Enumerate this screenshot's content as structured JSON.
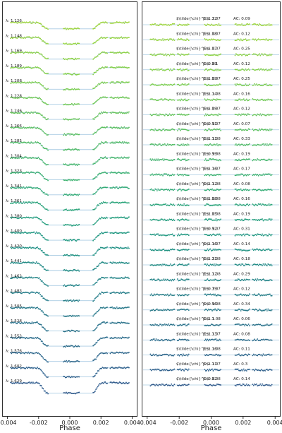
{
  "chart_data": [
    {
      "type": "line",
      "panel": "light-curves",
      "xlabel": "Phase",
      "xticks": [
        "-0.004",
        "-0.002",
        "0.000",
        "0.002",
        "0.004"
      ],
      "xlim": [
        -0.0043,
        0.0043
      ],
      "transit": {
        "t1": -0.00205,
        "t2": -0.0014,
        "t3": 0.00143,
        "t4": 0.00208
      },
      "series": [
        {
          "label": "λ: 1.126",
          "color": "#9fd63a",
          "depth": 0.55
        },
        {
          "label": "λ: 1.148",
          "color": "#97d63e",
          "depth": 0.56
        },
        {
          "label": "λ: 1.169",
          "color": "#8fd443",
          "depth": 0.57
        },
        {
          "label": "λ: 1.189",
          "color": "#86d249",
          "depth": 0.57
        },
        {
          "label": "λ: 1.208",
          "color": "#7dcf4d",
          "depth": 0.58
        },
        {
          "label": "λ: 1.228",
          "color": "#72cb52",
          "depth": 0.59
        },
        {
          "label": "λ: 1.246",
          "color": "#67c657",
          "depth": 0.6
        },
        {
          "label": "λ: 1.266",
          "color": "#5bc15d",
          "depth": 0.6
        },
        {
          "label": "λ: 1.285",
          "color": "#50bc63",
          "depth": 0.61
        },
        {
          "label": "λ: 1.304",
          "color": "#45b769",
          "depth": 0.62
        },
        {
          "label": "λ: 1.323",
          "color": "#3bb26e",
          "depth": 0.63
        },
        {
          "label": "λ: 1.341",
          "color": "#32ac73",
          "depth": 0.63
        },
        {
          "label": "λ: 1.361",
          "color": "#2aa577",
          "depth": 0.64
        },
        {
          "label": "λ: 1.380",
          "color": "#249f7b",
          "depth": 0.65
        },
        {
          "label": "λ: 1.400",
          "color": "#20997e",
          "depth": 0.66
        },
        {
          "label": "λ: 1.420",
          "color": "#1f9280",
          "depth": 0.67
        },
        {
          "label": "λ: 1.441",
          "color": "#208b82",
          "depth": 0.68
        },
        {
          "label": "λ: 1.462",
          "color": "#228484",
          "depth": 0.69
        },
        {
          "label": "λ: 1.483",
          "color": "#247d85",
          "depth": 0.7
        },
        {
          "label": "λ: 1.505",
          "color": "#267786",
          "depth": 0.71
        },
        {
          "label": "λ: 1.528",
          "color": "#287087",
          "depth": 0.72
        },
        {
          "label": "λ: 1.552",
          "color": "#2a6a88",
          "depth": 0.74
        },
        {
          "label": "λ: 1.576",
          "color": "#2c6488",
          "depth": 0.76
        },
        {
          "label": "λ: 1.602",
          "color": "#2d5e89",
          "depth": 0.8
        },
        {
          "label": "λ: 1.629",
          "color": "#2f5889",
          "depth": 0.9
        }
      ]
    },
    {
      "type": "scatter",
      "panel": "residuals",
      "xlabel": "Phase",
      "xticks": [
        "-0.004",
        "-0.002",
        "0.000",
        "0.002",
        "0.004"
      ],
      "xlim": [
        -0.0043,
        0.0043
      ],
      "series": [
        {
          "chi2": "$\\tilde{\\chi}^2$: 1.07",
          "beta": "β: 1.22",
          "ac": "AC: 0.09"
        },
        {
          "chi2": "$\\tilde{\\chi}^2$: 1.07",
          "beta": "β: 1.08",
          "ac": "AC: 0.12"
        },
        {
          "chi2": "$\\tilde{\\chi}^2$: 1.07",
          "beta": "β: 1.07",
          "ac": "AC: 0.25"
        },
        {
          "chi2": "$\\tilde{\\chi}^2$: 1.1",
          "beta": "β: 0.89",
          "ac": "AC: 0.12"
        },
        {
          "chi2": "$\\tilde{\\chi}^2$: 1.07",
          "beta": "β: 1.09",
          "ac": "AC: 0.25"
        },
        {
          "chi2": "$\\tilde{\\chi}^2$: 1.08",
          "beta": "β: 1.14",
          "ac": "AC: 0.16"
        },
        {
          "chi2": "$\\tilde{\\chi}^2$: 1.07",
          "beta": "β: 1.09",
          "ac": "AC: 0.12"
        },
        {
          "chi2": "$\\tilde{\\chi}^2$: 1.07",
          "beta": "β: 0.91",
          "ac": "AC: 0.07"
        },
        {
          "chi2": "$\\tilde{\\chi}^2$: 1.08",
          "beta": "β: 1.11",
          "ac": "AC: 0.33"
        },
        {
          "chi2": "$\\tilde{\\chi}^2$: 1.08",
          "beta": "β: 0.99",
          "ac": "AC: 0.19"
        },
        {
          "chi2": "$\\tilde{\\chi}^2$: 1.07",
          "beta": "β: 1.16",
          "ac": "AC: 0.17"
        },
        {
          "chi2": "$\\tilde{\\chi}^2$: 1.08",
          "beta": "β: 1.12",
          "ac": "AC: 0.08"
        },
        {
          "chi2": "$\\tilde{\\chi}^2$: 1.08",
          "beta": "β: 1.08",
          "ac": "AC: 0.16"
        },
        {
          "chi2": "$\\tilde{\\chi}^2$: 1.08",
          "beta": "β: 1.05",
          "ac": "AC: 0.19"
        },
        {
          "chi2": "$\\tilde{\\chi}^2$: 1.07",
          "beta": "β: 0.92",
          "ac": "AC: 0.31"
        },
        {
          "chi2": "$\\tilde{\\chi}^2$: 1.07",
          "beta": "β: 1.16",
          "ac": "AC: 0.14"
        },
        {
          "chi2": "$\\tilde{\\chi}^2$: 1.08",
          "beta": "β: 1.21",
          "ac": "AC: 0.18"
        },
        {
          "chi2": "$\\tilde{\\chi}^2$: 1.08",
          "beta": "β: 1.12",
          "ac": "AC: 0.29"
        },
        {
          "chi2": "$\\tilde{\\chi}^2$: 1.07",
          "beta": "β: 0.79",
          "ac": "AC: 0.12"
        },
        {
          "chi2": "$\\tilde{\\chi}^2$: 1.08",
          "beta": "β: 0.96",
          "ac": "AC: 0.34"
        },
        {
          "chi2": "$\\tilde{\\chi}^2$: 1.08",
          "beta": "β: 1.1",
          "ac": "AC: 0.06"
        },
        {
          "chi2": "$\\tilde{\\chi}^2$: 1.07",
          "beta": "β: 1.13",
          "ac": "AC: 0.08"
        },
        {
          "chi2": "$\\tilde{\\chi}^2$: 1.08",
          "beta": "β: 1.16",
          "ac": "AC: 0.11"
        },
        {
          "chi2": "$\\tilde{\\chi}^2$: 1.07",
          "beta": "β: 1.11",
          "ac": "AC: 0.3"
        },
        {
          "chi2": "$\\tilde{\\chi}^2$: 1.08",
          "beta": "β: 0.82",
          "ac": "AC: 0.14"
        }
      ]
    }
  ]
}
